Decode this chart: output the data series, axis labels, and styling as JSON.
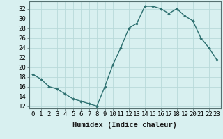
{
  "x": [
    0,
    1,
    2,
    3,
    4,
    5,
    6,
    7,
    8,
    9,
    10,
    11,
    12,
    13,
    14,
    15,
    16,
    17,
    18,
    19,
    20,
    21,
    22,
    23
  ],
  "y": [
    18.5,
    17.5,
    16.0,
    15.5,
    14.5,
    13.5,
    13.0,
    12.5,
    12.0,
    16.0,
    20.5,
    24.0,
    28.0,
    29.0,
    32.5,
    32.5,
    32.0,
    31.0,
    32.0,
    30.5,
    29.5,
    26.0,
    24.0,
    21.5
  ],
  "line_color": "#2d7070",
  "marker": "D",
  "marker_size": 1.8,
  "bg_color": "#d8f0f0",
  "grid_color": "#b8dada",
  "xlabel": "Humidex (Indice chaleur)",
  "xlabel_fontsize": 7.5,
  "xlim": [
    -0.5,
    23.5
  ],
  "ylim": [
    11.5,
    33.5
  ],
  "yticks": [
    12,
    14,
    16,
    18,
    20,
    22,
    24,
    26,
    28,
    30,
    32
  ],
  "xticks": [
    0,
    1,
    2,
    3,
    4,
    5,
    6,
    7,
    8,
    9,
    10,
    11,
    12,
    13,
    14,
    15,
    16,
    17,
    18,
    19,
    20,
    21,
    22,
    23
  ],
  "tick_label_fontsize": 6.5,
  "line_width": 1.0
}
